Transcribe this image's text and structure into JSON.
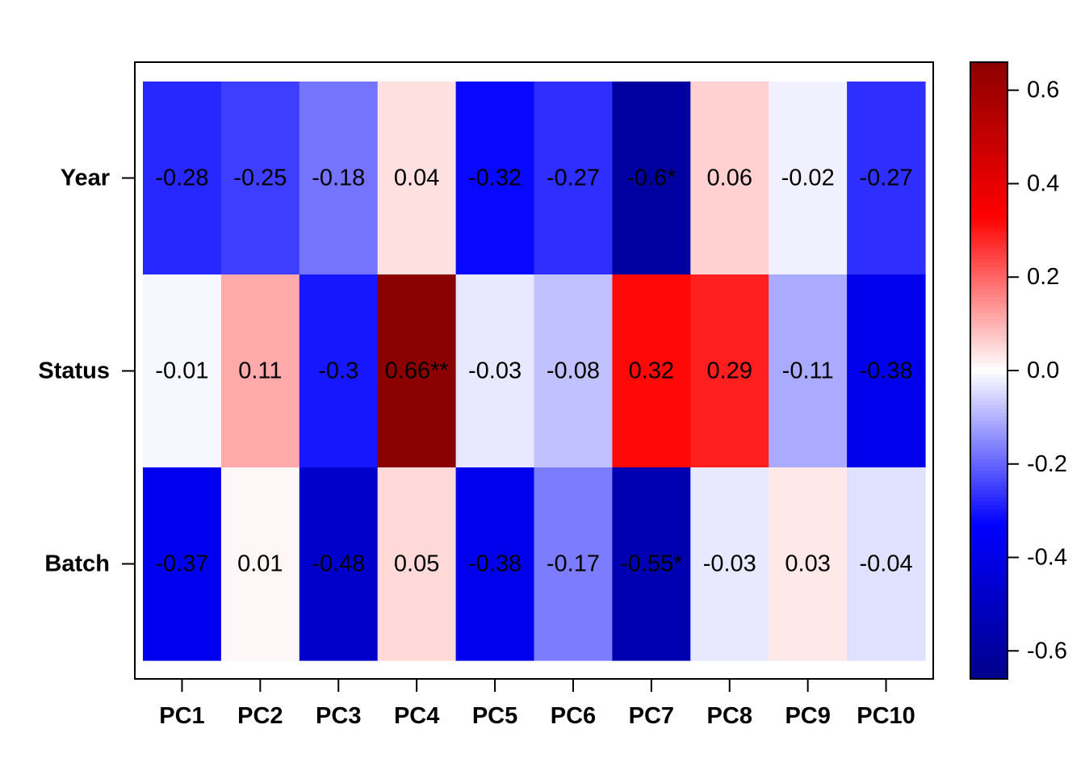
{
  "chart_data": {
    "type": "heatmap",
    "title": "",
    "rows": [
      "Year",
      "Status",
      "Batch"
    ],
    "columns": [
      "PC1",
      "PC2",
      "PC3",
      "PC4",
      "PC5",
      "PC6",
      "PC7",
      "PC8",
      "PC9",
      "PC10"
    ],
    "values": [
      [
        -0.28,
        -0.25,
        -0.18,
        0.04,
        -0.32,
        -0.27,
        -0.6,
        0.06,
        -0.02,
        -0.27
      ],
      [
        -0.01,
        0.11,
        -0.3,
        0.66,
        -0.03,
        -0.08,
        0.32,
        0.29,
        -0.11,
        -0.38
      ],
      [
        -0.37,
        0.01,
        -0.48,
        0.05,
        -0.38,
        -0.17,
        -0.55,
        -0.03,
        0.03,
        -0.04
      ]
    ],
    "cell_labels": [
      [
        "-0.28",
        "-0.25",
        "-0.18",
        "0.04",
        "-0.32",
        "-0.27",
        "-0.6*",
        "0.06",
        "-0.02",
        "-0.27"
      ],
      [
        "-0.01",
        "0.11",
        "-0.3",
        "0.66**",
        "-0.03",
        "-0.08",
        "0.32",
        "0.29",
        "-0.11",
        "-0.38"
      ],
      [
        "-0.37",
        "0.01",
        "-0.48",
        "0.05",
        "-0.38",
        "-0.17",
        "-0.55*",
        "-0.03",
        "0.03",
        "-0.04"
      ]
    ],
    "colorbar": {
      "range": [
        -0.66,
        0.66
      ],
      "ticks": [
        -0.6,
        -0.4,
        -0.2,
        0.0,
        0.2,
        0.4,
        0.6
      ],
      "tick_labels": [
        "-0.6",
        "-0.4",
        "-0.2",
        "0.0",
        "0.2",
        "0.4",
        "0.6"
      ],
      "placement": "right"
    },
    "colors": {
      "low": "#00008b",
      "mid_low": "#0000ff",
      "zero": "#ffffff",
      "mid_high": "#ff0000",
      "high": "#8b0000"
    },
    "grid": false
  }
}
